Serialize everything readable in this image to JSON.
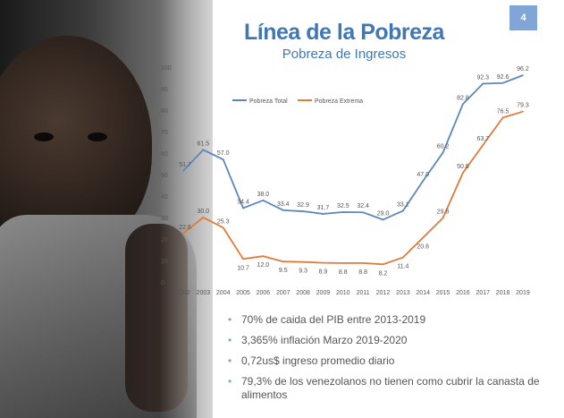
{
  "slide": {
    "page_number": "4",
    "title": "Línea de la Pobreza",
    "subtitle": "Pobreza de Ingresos"
  },
  "bullets": [
    "70% de caida del PIB entre 2013-2019",
    "3,365% inflación Marzo 2019-2020",
    "0,72us$ ingreso promedio diario",
    "79,3% de los venezolanos no tienen como cubrir la canasta de alimentos"
  ],
  "chart_data": {
    "type": "line",
    "x": [
      "2002",
      "2003",
      "2004",
      "2005",
      "2006",
      "2007",
      "2008",
      "2009",
      "2010",
      "2011",
      "2012",
      "2013",
      "2014",
      "2015",
      "2016",
      "2017",
      "2018",
      "2019"
    ],
    "series": [
      {
        "name": "Pobreza Total",
        "color": "#5b87bf",
        "values": [
          51.7,
          61.5,
          57.0,
          34.4,
          38.0,
          33.4,
          32.9,
          31.7,
          32.5,
          32.4,
          29.0,
          33.1,
          47.0,
          60.2,
          82.8,
          92.3,
          92.6,
          96.2
        ],
        "labels": [
          "51.7",
          "61.5",
          "57.0",
          "34.4",
          "38.0",
          "33.4",
          "32.9",
          "31.7",
          "32.5",
          "32.4",
          "29.0",
          "33.1",
          "47.0",
          "60.2",
          "82.8",
          "92.3",
          "92.6",
          "96.2"
        ]
      },
      {
        "name": "Pobreza Extrema",
        "color": "#e07b39",
        "values": [
          22.6,
          30.0,
          25.3,
          10.7,
          12.0,
          9.5,
          9.3,
          8.9,
          8.8,
          8.8,
          8.2,
          11.4,
          20.6,
          29.8,
          50.8,
          63.7,
          76.5,
          79.3
        ],
        "labels": [
          "22.6",
          "30.0",
          "25.3",
          "10.7",
          "12.0",
          "9.5",
          "9.3",
          "8.9",
          "8.8",
          "8.8",
          "8.2",
          "11.4",
          "20.6",
          "29.8",
          "50.8",
          "63.7",
          "76.5",
          "79.3"
        ]
      }
    ],
    "yticks": [
      "0",
      "10",
      "20",
      "30",
      "40",
      "50",
      "60",
      "70",
      "80",
      "90",
      "100"
    ],
    "ylim": [
      0,
      100
    ],
    "grid": false,
    "legend": "top-left"
  }
}
